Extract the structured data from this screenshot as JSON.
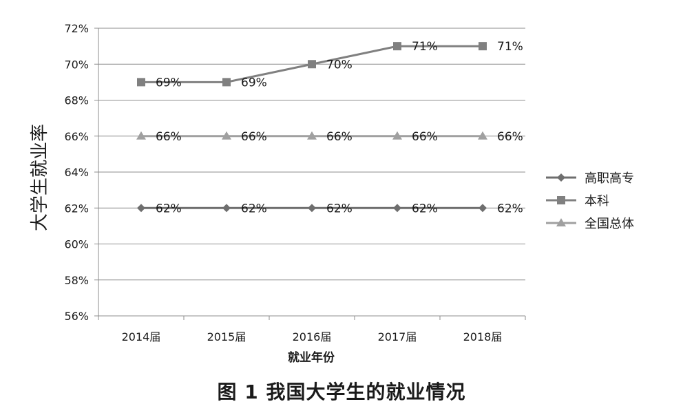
{
  "caption": "图 1   我国大学生的就业情况",
  "chart_data": {
    "type": "line",
    "categories": [
      "2014届",
      "2015届",
      "2016届",
      "2017届",
      "2018届"
    ],
    "xlabel": "就业年份",
    "ylabel": "大学生就业率",
    "ylim": [
      56,
      72
    ],
    "yticks": [
      56,
      58,
      60,
      62,
      64,
      66,
      68,
      70,
      72
    ],
    "y_unit": "%",
    "grid": true,
    "legend_position": "right",
    "series": [
      {
        "name": "高职高专",
        "values": [
          62,
          62,
          62,
          62,
          62
        ],
        "labels": [
          "62%",
          "62%",
          "62%",
          "62%",
          "62%"
        ],
        "marker": "diamond",
        "color": "#6e6e6e"
      },
      {
        "name": "本科",
        "values": [
          69,
          69,
          70,
          71,
          71
        ],
        "labels": [
          "69%",
          "69%",
          "70%",
          "71%",
          "71%"
        ],
        "marker": "square",
        "color": "#808080"
      },
      {
        "name": "全国总体",
        "values": [
          66,
          66,
          66,
          66,
          66
        ],
        "labels": [
          "66%",
          "66%",
          "66%",
          "66%",
          "66%"
        ],
        "marker": "triangle",
        "color": "#a0a0a0"
      }
    ]
  }
}
